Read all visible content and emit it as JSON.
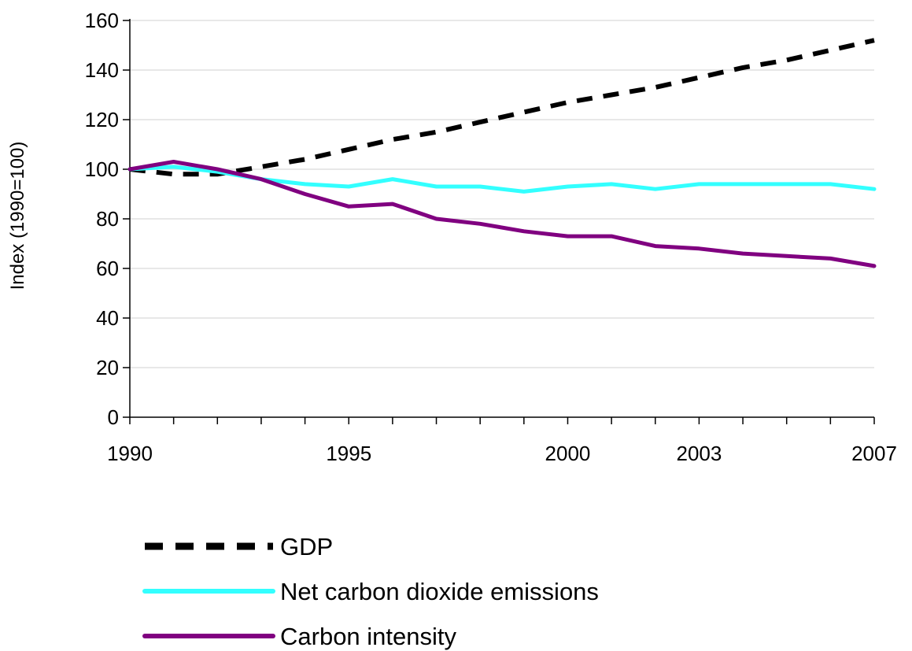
{
  "chart_data": {
    "type": "line",
    "title": "",
    "xlabel": "",
    "ylabel": "Index (1990=100)",
    "xlim": [
      1990,
      2007
    ],
    "ylim": [
      0,
      160
    ],
    "y_ticks": [
      0,
      20,
      40,
      60,
      80,
      100,
      120,
      140,
      160
    ],
    "x_minor_ticks": [
      1990,
      1991,
      1992,
      1993,
      1994,
      1995,
      1996,
      1997,
      1998,
      1999,
      2000,
      2001,
      2002,
      2003,
      2004,
      2005,
      2006,
      2007
    ],
    "x_tick_labels": [
      {
        "value": 1990,
        "label": "1990"
      },
      {
        "value": 1995,
        "label": "1995"
      },
      {
        "value": 2000,
        "label": "2000"
      },
      {
        "value": 2003,
        "label": "2003"
      },
      {
        "value": 2007,
        "label": "2007"
      }
    ],
    "grid": "horizontal",
    "legend_position": "bottom-left",
    "x": [
      1990,
      1991,
      1992,
      1993,
      1994,
      1995,
      1996,
      1997,
      1998,
      1999,
      2000,
      2001,
      2002,
      2003,
      2004,
      2005,
      2006,
      2007
    ],
    "series": [
      {
        "name": "GDP",
        "color": "#000000",
        "style": "dashed",
        "values": [
          100,
          98,
          98,
          101,
          104,
          108,
          112,
          115,
          119,
          123,
          127,
          130,
          133,
          137,
          141,
          144,
          148,
          152
        ]
      },
      {
        "name": "Net carbon dioxide emissions",
        "color": "#33ffff",
        "style": "solid",
        "values": [
          100,
          101,
          99,
          96,
          94,
          93,
          96,
          93,
          93,
          91,
          93,
          94,
          92,
          94,
          94,
          94,
          94,
          92
        ]
      },
      {
        "name": "Carbon intensity",
        "color": "#800080",
        "style": "solid",
        "values": [
          100,
          103,
          100,
          96,
          90,
          85,
          86,
          80,
          78,
          75,
          73,
          73,
          69,
          68,
          66,
          65,
          64,
          61
        ]
      }
    ]
  }
}
